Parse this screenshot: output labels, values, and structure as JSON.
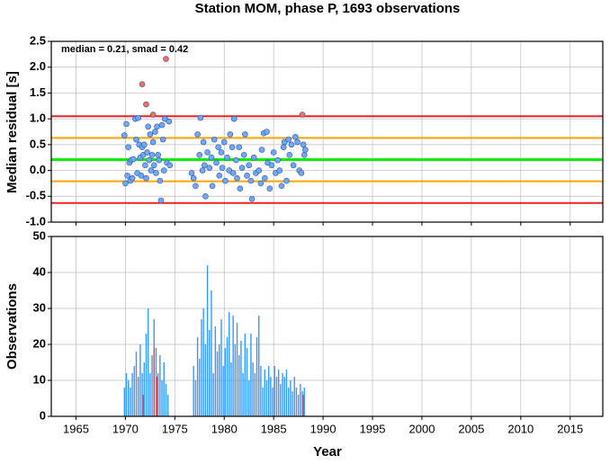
{
  "chart_data": [
    {
      "type": "scatter",
      "title": "Station MOM, phase P, 1693 observations",
      "ylabel": "Median residual [s]",
      "annotation": "median = 0.21, smad = 0.42",
      "xlim": [
        1962.5,
        2018.3
      ],
      "xticks": [
        1965,
        1970,
        1975,
        1980,
        1985,
        1990,
        1995,
        2000,
        2005,
        2010,
        2015
      ],
      "ylim": [
        -1.0,
        2.5
      ],
      "yticks": [
        2.5,
        {
          "value": 2,
          "label": "2.0"
        },
        1.5,
        {
          "value": 1,
          "label": "1.0"
        },
        0.5,
        {
          "value": 0,
          "label": "0.0"
        },
        -0.5,
        {
          "value": -1,
          "label": "-1.0"
        }
      ],
      "grid": true,
      "reference_lines": [
        {
          "value": 1.05,
          "color": "#ee2222"
        },
        {
          "value": 0.63,
          "color": "#ffa500"
        },
        {
          "value": 0.21,
          "color": "#00ee00"
        },
        {
          "value": -0.21,
          "color": "#ffa500"
        },
        {
          "value": -0.63,
          "color": "#ee2222"
        }
      ],
      "series": [
        {
          "color": "#6fa8f5",
          "x": [
            1969.9,
            1970.0,
            1970.1,
            1970.2,
            1970.3,
            1970.4,
            1970.5,
            1970.6,
            1970.7,
            1970.8,
            1971.0,
            1971.1,
            1971.2,
            1971.3,
            1971.4,
            1971.5,
            1971.6,
            1971.7,
            1971.8,
            1971.9,
            1972.0,
            1972.1,
            1972.2,
            1972.3,
            1972.4,
            1972.5,
            1972.6,
            1972.7,
            1972.8,
            1972.9,
            1973.0,
            1973.1,
            1973.2,
            1973.3,
            1973.4,
            1973.5,
            1973.6,
            1973.7,
            1973.8,
            1973.9,
            1974.0,
            1974.2,
            1974.4,
            1974.5,
            1976.7,
            1976.9,
            1977.1,
            1977.3,
            1977.5,
            1977.6,
            1977.8,
            1977.9,
            1978.0,
            1978.1,
            1978.3,
            1978.5,
            1978.7,
            1978.8,
            1979.0,
            1979.2,
            1979.4,
            1979.5,
            1979.7,
            1979.8,
            1980.0,
            1980.1,
            1980.3,
            1980.5,
            1980.6,
            1980.8,
            1980.9,
            1981.0,
            1981.2,
            1981.3,
            1981.5,
            1981.6,
            1981.8,
            1982.0,
            1982.1,
            1982.3,
            1982.5,
            1982.7,
            1982.8,
            1983.0,
            1983.2,
            1983.5,
            1983.7,
            1983.8,
            1984.0,
            1984.1,
            1984.3,
            1984.4,
            1984.6,
            1984.8,
            1985.0,
            1985.2,
            1985.4,
            1985.6,
            1985.8,
            1986.0,
            1986.1,
            1986.3,
            1986.5,
            1986.6,
            1986.8,
            1987.0,
            1987.2,
            1987.4,
            1987.6,
            1987.8,
            1988.0,
            1988.1,
            1988.2
          ],
          "values": [
            0.68,
            -0.25,
            0.9,
            -0.1,
            0.45,
            0.15,
            -0.2,
            0.2,
            -0.15,
            0.22,
            1.0,
            0.6,
            -0.05,
            1.02,
            0.5,
            0.25,
            -0.1,
            0.45,
            0.3,
            0.5,
            0.1,
            -0.15,
            0.35,
            0.85,
            0.2,
            0.7,
            0.0,
            0.3,
            0.55,
            0.1,
            0.75,
            -0.05,
            0.85,
            0.3,
            0.2,
            -0.2,
            -0.58,
            0.88,
            0.6,
            0.0,
            1.0,
            0.15,
            0.95,
            0.1,
            -0.05,
            -0.15,
            -0.3,
            0.7,
            0.3,
            1.02,
            0.0,
            0.55,
            0.1,
            -0.5,
            0.35,
            0.05,
            0.25,
            -0.3,
            0.6,
            0.15,
            0.45,
            -0.1,
            0.35,
            0.05,
            0.55,
            -0.2,
            0.25,
            0.0,
            0.7,
            0.45,
            -0.05,
            1.0,
            0.2,
            -0.15,
            0.45,
            -0.35,
            0.05,
            0.3,
            0.7,
            -0.1,
            0.1,
            -0.2,
            -0.55,
            0.25,
            -0.05,
            0.0,
            -0.25,
            0.4,
            0.72,
            -0.15,
            0.75,
            0.15,
            -0.35,
            0.1,
            0.35,
            -0.05,
            0.2,
            0.0,
            -0.3,
            0.45,
            0.55,
            -0.2,
            0.6,
            0.3,
            0.5,
            0.1,
            0.65,
            0.55,
            0.0,
            -0.05,
            0.5,
            0.3,
            0.4
          ]
        },
        {
          "color": "#f07060",
          "x": [
            1971.7,
            1972.1,
            1972.8,
            1974.1,
            1987.9
          ],
          "values": [
            1.67,
            1.28,
            1.08,
            2.16,
            1.08
          ]
        }
      ]
    },
    {
      "type": "bar",
      "xlabel": "Year",
      "ylabel": "Observations",
      "xlim": [
        1962.5,
        2018.3
      ],
      "xticks": [
        1965,
        1970,
        1975,
        1980,
        1985,
        1990,
        1995,
        2000,
        2005,
        2010,
        2015
      ],
      "ylim": [
        0,
        50
      ],
      "yticks": [
        0,
        10,
        20,
        30,
        40,
        50
      ],
      "grid": true,
      "series": [
        {
          "color": "#3399ff",
          "x": [
            1969.9,
            1970.1,
            1970.3,
            1970.5,
            1970.7,
            1970.9,
            1971.1,
            1971.3,
            1971.5,
            1971.7,
            1971.9,
            1972.1,
            1972.3,
            1972.5,
            1972.7,
            1972.9,
            1973.1,
            1973.3,
            1973.5,
            1973.7,
            1973.9,
            1974.1,
            1974.3,
            1976.9,
            1977.1,
            1977.3,
            1977.5,
            1977.7,
            1977.9,
            1978.1,
            1978.3,
            1978.5,
            1978.7,
            1978.9,
            1979.1,
            1979.3,
            1979.5,
            1979.7,
            1979.9,
            1980.1,
            1980.3,
            1980.5,
            1980.7,
            1980.9,
            1981.1,
            1981.3,
            1981.5,
            1981.7,
            1981.9,
            1982.1,
            1982.3,
            1982.5,
            1982.7,
            1982.9,
            1983.1,
            1983.3,
            1983.5,
            1983.7,
            1983.9,
            1984.1,
            1984.3,
            1984.5,
            1984.7,
            1984.9,
            1985.1,
            1985.3,
            1985.5,
            1985.7,
            1985.9,
            1986.1,
            1986.3,
            1986.5,
            1986.7,
            1986.9,
            1987.1,
            1987.3,
            1987.5,
            1987.7,
            1987.9,
            1988.1
          ],
          "values": [
            8,
            12,
            10,
            8,
            12,
            14,
            18,
            11,
            20,
            12,
            15,
            23,
            30,
            12,
            17,
            27,
            19,
            12,
            17,
            10,
            15,
            9,
            6,
            14,
            10,
            22,
            16,
            27,
            30,
            20,
            42,
            24,
            35,
            12,
            25,
            18,
            20,
            27,
            14,
            19,
            22,
            29,
            15,
            28,
            20,
            26,
            17,
            21,
            12,
            23,
            19,
            10,
            23,
            15,
            12,
            22,
            28,
            14,
            8,
            13,
            10,
            14,
            11,
            8,
            14,
            11,
            13,
            9,
            12,
            11,
            13,
            8,
            10,
            7,
            11,
            8,
            6,
            9,
            7,
            8
          ]
        },
        {
          "color": "#ee4444",
          "x": [
            1971.8,
            1972.9,
            1973.2,
            1988.0
          ],
          "values": [
            6,
            19,
            11,
            6
          ]
        }
      ]
    }
  ]
}
